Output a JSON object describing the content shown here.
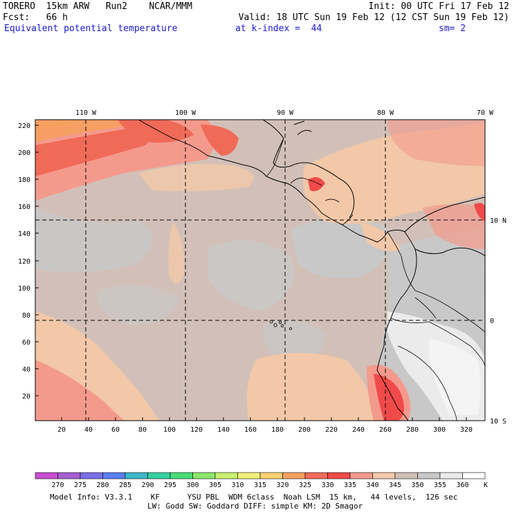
{
  "header": {
    "model": "TORERO  15km ARW   Run2    NCAR/MMM",
    "init": "Init: 00 UTC Fri 17 Feb 12",
    "fcst": "Fcst:   66 h",
    "valid": "Valid: 18 UTC Sun 19 Feb 12 (12 CST Sun 19 Feb 12)",
    "field": "Equivalent potential temperature",
    "level": "at k-index =  44",
    "smooth": "sm= 2"
  },
  "map": {
    "lon_labels": [
      "110 W",
      "100 W",
      "90 W",
      "80 W",
      "70 W"
    ],
    "lat_labels": [
      "10 N",
      "0",
      "10 S"
    ],
    "y_ticks": [
      "220",
      "200",
      "180",
      "160",
      "140",
      "120",
      "100",
      "80",
      "60",
      "40",
      "20"
    ],
    "x_ticks": [
      "20",
      "40",
      "60",
      "80",
      "100",
      "120",
      "140",
      "160",
      "180",
      "200",
      "220",
      "240",
      "260",
      "280",
      "300",
      "320"
    ]
  },
  "colorbar": {
    "levels": [
      "270",
      "275",
      "280",
      "285",
      "290",
      "295",
      "300",
      "305",
      "310",
      "315",
      "320",
      "325",
      "330",
      "335",
      "340",
      "345",
      "350",
      "355",
      "360"
    ],
    "unit": "K",
    "colors": [
      "#c84fd2",
      "#a45fd2",
      "#7a6ee8",
      "#5a7ef0",
      "#3cb7c8",
      "#32d2a0",
      "#48dc78",
      "#8ce66a",
      "#c8f06e",
      "#f0f07a",
      "#fad272",
      "#f6a060",
      "#f06a58",
      "#f04a4a",
      "#f49a8c",
      "#f2c8a8",
      "#d2c0b8",
      "#c8c8c8",
      "#ebebeb",
      "#ffffff"
    ]
  },
  "footer": {
    "line1": "Model Info: V3.3.1    KF      YSU PBL  WDM 6class  Noah LSM  15 km,   44 levels,  126 sec",
    "line2": "LW: Godd SW: Goddard DIFF: simple KM: 2D Smagor"
  }
}
